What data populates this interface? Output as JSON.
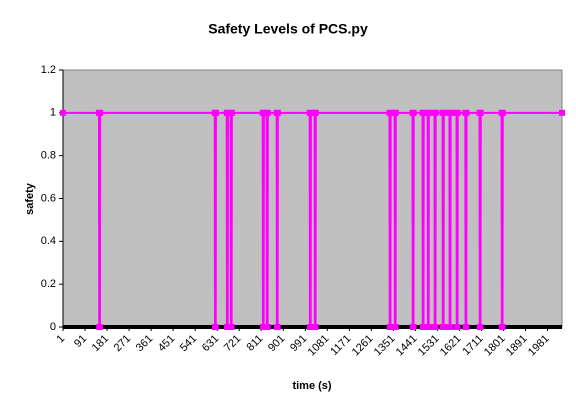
{
  "chart_data": {
    "type": "line",
    "title": "Safety Levels of PCS.py",
    "x_label": "time (s)",
    "y_label": "safety",
    "x": [
      1,
      148,
      149,
      152,
      153,
      621,
      622,
      625,
      626,
      670,
      671,
      674,
      675,
      686,
      687,
      690,
      691,
      817,
      818,
      821,
      822,
      833,
      834,
      837,
      838,
      874,
      875,
      878,
      879,
      1009,
      1010,
      1013,
      1014,
      1029,
      1030,
      1033,
      1034,
      1335,
      1336,
      1339,
      1340,
      1356,
      1357,
      1360,
      1361,
      1429,
      1430,
      1433,
      1434,
      1470,
      1471,
      1474,
      1475,
      1491,
      1492,
      1495,
      1496,
      1519,
      1520,
      1523,
      1524,
      1552,
      1553,
      1556,
      1557,
      1580,
      1581,
      1584,
      1585,
      1609,
      1610,
      1613,
      1614,
      1645,
      1646,
      1649,
      1650,
      1703,
      1704,
      1707,
      1708,
      1793,
      1794,
      1797,
      1798,
      2040
    ],
    "series": [
      {
        "color": "#ff00ff",
        "values": [
          1,
          1,
          0,
          0,
          1,
          1,
          0,
          0,
          1,
          1,
          0,
          0,
          1,
          1,
          0,
          0,
          1,
          1,
          0,
          0,
          1,
          1,
          0,
          0,
          1,
          1,
          0,
          0,
          1,
          1,
          0,
          0,
          1,
          1,
          0,
          0,
          1,
          1,
          0,
          0,
          1,
          1,
          0,
          0,
          1,
          1,
          0,
          0,
          1,
          1,
          0,
          0,
          1,
          1,
          0,
          0,
          1,
          1,
          0,
          0,
          1,
          1,
          0,
          0,
          1,
          1,
          0,
          0,
          1,
          1,
          0,
          0,
          1,
          1,
          0,
          0,
          1,
          1,
          0,
          0,
          1,
          1,
          0,
          0,
          1,
          1
        ]
      }
    ],
    "xlim": [
      1,
      2040
    ],
    "xticks": [
      1,
      91,
      181,
      271,
      361,
      451,
      541,
      631,
      721,
      811,
      901,
      991,
      1081,
      1171,
      1261,
      1351,
      1441,
      1531,
      1621,
      1711,
      1801,
      1891,
      1981
    ],
    "ylim": [
      0,
      1.2
    ],
    "yticks": [
      0,
      0.2,
      0.4,
      0.6,
      0.8,
      1,
      1.2
    ]
  }
}
